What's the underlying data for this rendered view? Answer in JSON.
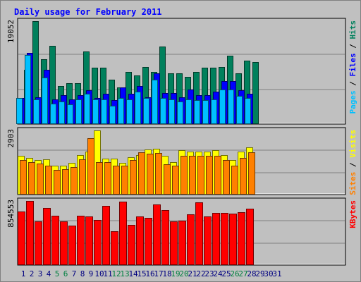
{
  "chart_data": [
    {
      "type": "bar",
      "title": "Daily usage for February 2011",
      "panel": "hits-files-pages",
      "ymax_label": "19052",
      "ylim": [
        0,
        19052
      ],
      "right_label": {
        "parts": [
          "Pages",
          "Files",
          "Hits"
        ],
        "separator": " / "
      },
      "series": [
        {
          "name": "Hits",
          "color": "#00805c",
          "values": [
            10000,
            19052,
            12000,
            14500,
            7000,
            7600,
            7600,
            13400,
            10400,
            10400,
            8200,
            6800,
            9600,
            9000,
            10600,
            9600,
            14400,
            9400,
            9400,
            8800,
            9600,
            10400,
            10400,
            10600,
            12600,
            9400,
            11800,
            11500,
            0,
            0,
            0
          ]
        },
        {
          "name": "Files",
          "color": "#0000ff",
          "values": [
            4800,
            13200,
            5000,
            10000,
            4600,
            5400,
            4600,
            5400,
            6200,
            4800,
            5600,
            4400,
            6800,
            5600,
            7000,
            5000,
            9400,
            5800,
            5800,
            5000,
            6400,
            5400,
            5400,
            6000,
            8000,
            8000,
            6200,
            5600,
            0,
            0,
            0
          ]
        },
        {
          "name": "Pages",
          "color": "#00c0ff",
          "values": [
            4800,
            12800,
            4600,
            8600,
            3800,
            4200,
            3600,
            4600,
            5600,
            4600,
            4600,
            3400,
            4800,
            4600,
            6000,
            4800,
            8200,
            4800,
            4600,
            4200,
            4600,
            4400,
            4400,
            4600,
            6400,
            6400,
            5200,
            4800,
            0,
            0,
            0
          ]
        }
      ]
    },
    {
      "type": "bar",
      "panel": "visits-sites",
      "ymax_label": "2903",
      "ylim": [
        0,
        2903
      ],
      "right_label": {
        "parts": [
          "Sites",
          "Visits"
        ],
        "separator": " / "
      },
      "series": [
        {
          "name": "Visits",
          "color": "#ffff00",
          "values": [
            1760,
            1660,
            1560,
            1580,
            1300,
            1320,
            1440,
            1780,
            1960,
            2903,
            1640,
            1640,
            1440,
            1680,
            1800,
            2040,
            2080,
            1760,
            1480,
            2000,
            1960,
            1960,
            1960,
            2000,
            1800,
            1560,
            1960,
            2140,
            0,
            0,
            0
          ]
        },
        {
          "name": "Sites",
          "color": "#ff8000",
          "values": [
            1560,
            1460,
            1400,
            1320,
            1120,
            1160,
            1260,
            1600,
            2560,
            1480,
            1460,
            1300,
            1300,
            1560,
            1920,
            1860,
            1880,
            1380,
            1300,
            1760,
            1760,
            1740,
            1740,
            1760,
            1560,
            1300,
            1660,
            1920,
            0,
            0,
            0
          ]
        }
      ]
    },
    {
      "type": "bar",
      "panel": "kbytes",
      "ymax_label": "854553",
      "ylim": [
        0,
        854553
      ],
      "right_label": {
        "parts": [
          "KBytes"
        ],
        "separator": ""
      },
      "series": [
        {
          "name": "KBytes",
          "color": "#ff0000",
          "values": [
            711000,
            854553,
            580000,
            761000,
            660000,
            580000,
            530000,
            660000,
            650000,
            600000,
            790000,
            455000,
            846000,
            535000,
            645000,
            630000,
            810000,
            736000,
            578000,
            590000,
            680000,
            832000,
            650000,
            696000,
            696000,
            684000,
            706000,
            752000,
            0,
            0,
            0
          ]
        }
      ]
    }
  ],
  "days": [
    "1",
    "2",
    "3",
    "4",
    "5",
    "6",
    "7",
    "8",
    "9",
    "10",
    "11",
    "12",
    "13",
    "14",
    "15",
    "16",
    "17",
    "18",
    "19",
    "20",
    "21",
    "22",
    "23",
    "24",
    "25",
    "26",
    "27",
    "28",
    "29",
    "30",
    "31"
  ],
  "weekend_days": [
    5,
    6,
    12,
    13,
    19,
    20,
    26,
    27
  ],
  "colors": {
    "background": "#c0c0c0",
    "title": "#0000ff",
    "day_label": "#000080",
    "weekend_label": "#008040",
    "gridline": "#808080"
  }
}
